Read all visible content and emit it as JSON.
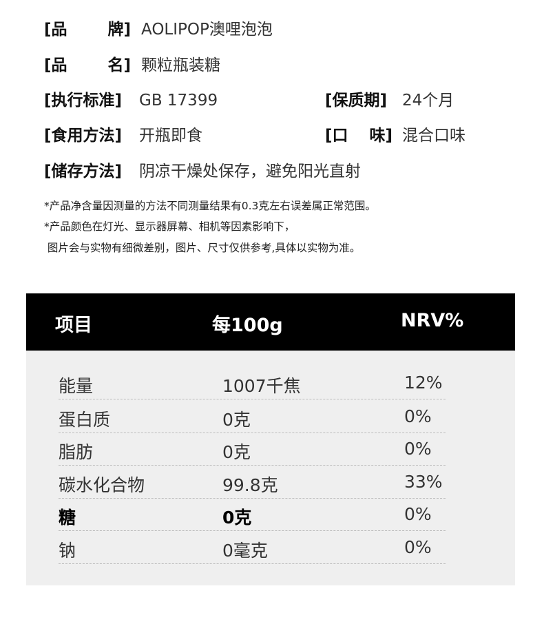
{
  "info": [
    {
      "label_left": "[品",
      "label_right": "牌]",
      "value": "AOLIPOP澳哩泡泡"
    },
    {
      "label_left": "[品",
      "label_right": "名]",
      "value": "颗粒瓶装糖"
    },
    {
      "label": "[执行标准]",
      "value": "GB 17399",
      "label2": "[保质期]",
      "value2": "24个月"
    },
    {
      "label": "[食用方法]",
      "value": "开瓶即食",
      "label2_left": "[口",
      "label2_right": "味]",
      "value2": "混合口味"
    },
    {
      "label": "[储存方法]",
      "value": "阴凉干燥处保存，避免阳光直射"
    }
  ],
  "notes": [
    "*产品净含量因测量的方法不同测量结果有0.3克左右误差属正常范围。",
    "*产品颜色在灯光、显示器屏幕、相机等因素影响下，",
    " 图片会与实物有细微差别，图片、尺寸仅供参考,具体以实物为准。"
  ],
  "nutrition": {
    "headers": [
      "项目",
      "每100g",
      "NRV%"
    ],
    "rows": [
      [
        "能量",
        "1007千焦",
        "12%"
      ],
      [
        "蛋白质",
        "0克",
        "0%"
      ],
      [
        "脂肪",
        "0克",
        "0%"
      ],
      [
        "碳水化合物",
        "99.8克",
        "33%"
      ],
      [
        "糖",
        "0克",
        "0%"
      ],
      [
        "钠",
        "0毫克",
        "0%"
      ]
    ]
  }
}
